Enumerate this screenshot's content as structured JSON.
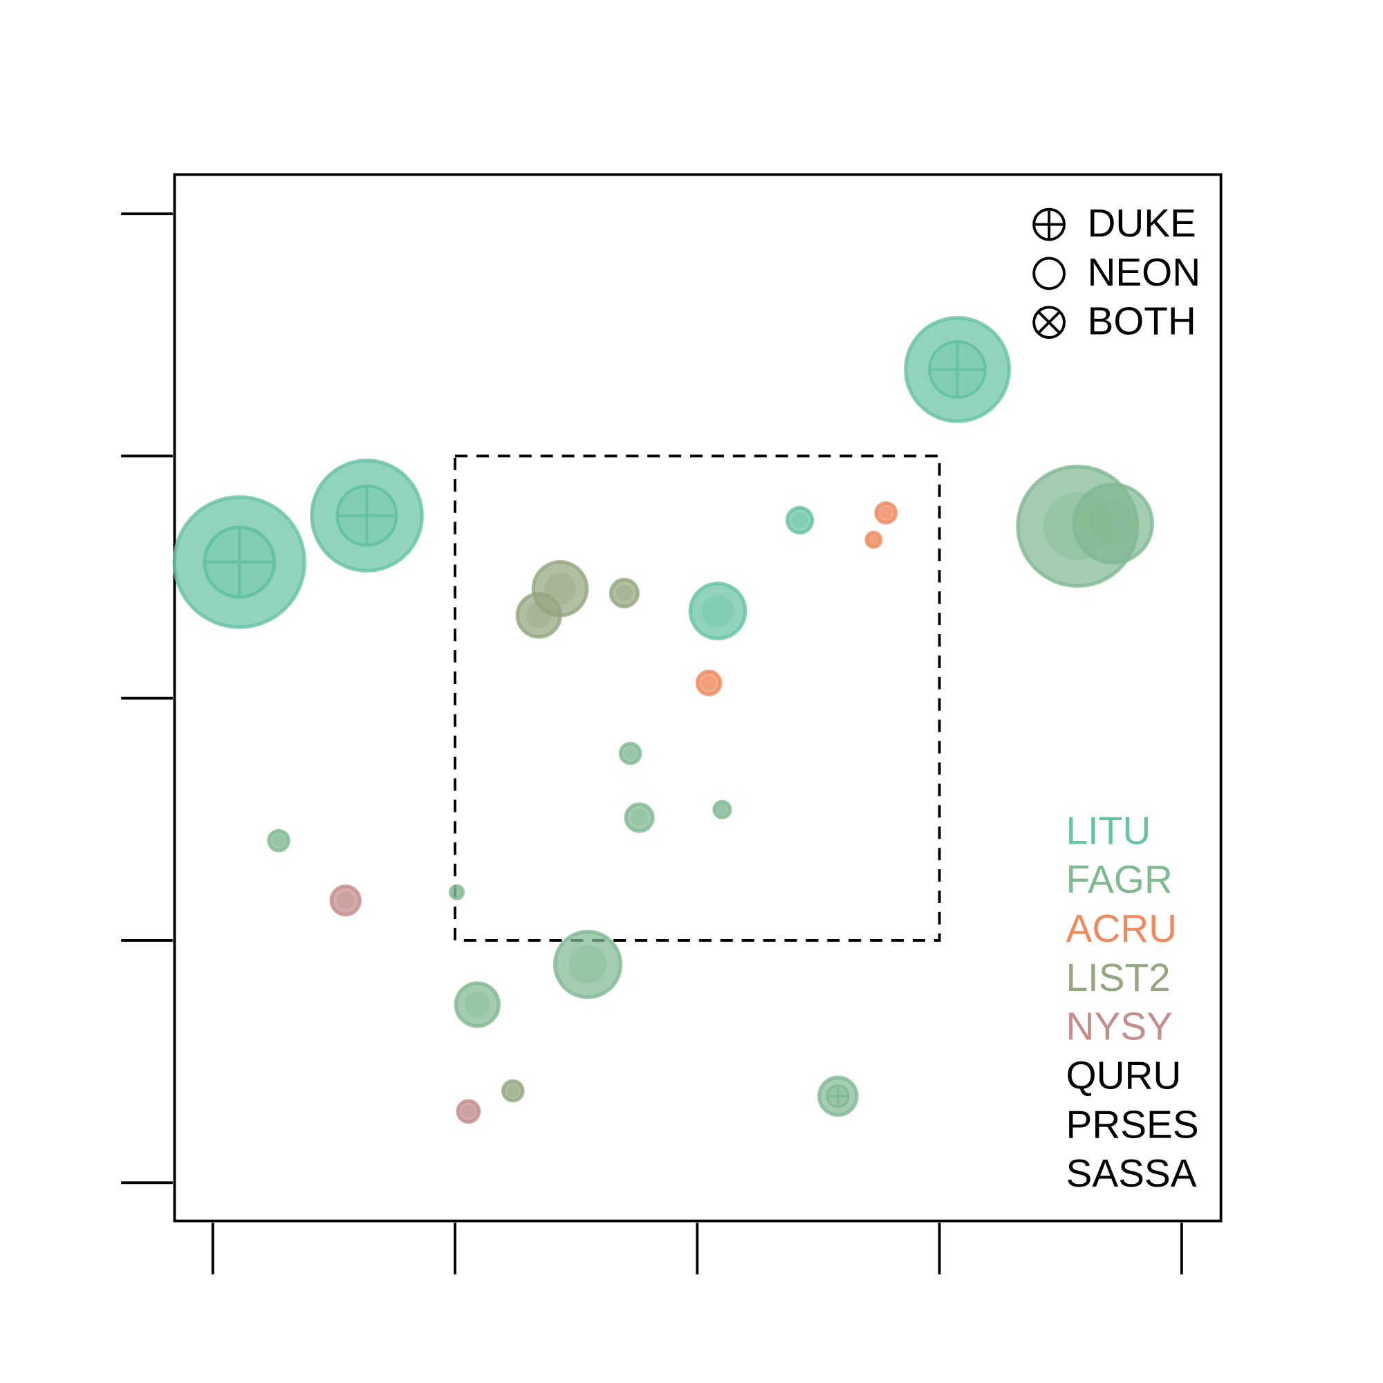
{
  "chart_data": {
    "type": "bubble",
    "xlim": [
      -1.58,
      41.62
    ],
    "ylim": [
      -1.58,
      41.62
    ],
    "xticks": [
      0,
      10,
      20,
      30,
      40
    ],
    "yticks": [
      0,
      10,
      20,
      30,
      40
    ],
    "region": {
      "xlim": [
        10,
        30
      ],
      "ylim": [
        10,
        30
      ]
    },
    "site_legend": [
      {
        "label": "DUKE",
        "symbol": "circle-plus"
      },
      {
        "label": "NEON",
        "symbol": "circle"
      },
      {
        "label": "BOTH",
        "symbol": "circle-x"
      }
    ],
    "series": [
      {
        "name": "LITU",
        "color": "#66c2a5",
        "x": [
          1.1,
          6.36,
          30.74,
          24.23,
          20.85
        ],
        "y": [
          25.62,
          27.54,
          33.57,
          27.35,
          23.6
        ],
        "sizes": [
          2.76,
          2.35,
          2.21,
          0.59,
          1.21
        ],
        "site": [
          "DUKE",
          "DUKE",
          "DUKE",
          "NEON",
          "NEON"
        ]
      },
      {
        "name": "FAGR",
        "color": "#7fb992",
        "x": [
          35.7,
          37.17,
          17.24,
          17.61,
          21.03,
          2.72,
          10.07,
          15.48,
          10.92,
          25.81
        ],
        "y": [
          27.1,
          27.21,
          17.72,
          15.07,
          15.4,
          14.12,
          11.99,
          9.01,
          7.35,
          3.57
        ],
        "sizes": [
          2.54,
          1.69,
          0.48,
          0.63,
          0.4,
          0.48,
          0.33,
          1.43,
          0.96,
          0.85
        ],
        "site": [
          "NEON",
          "NEON",
          "NEON",
          "NEON",
          "NEON",
          "NEON",
          "NEON",
          "NEON",
          "NEON",
          "DUKE"
        ]
      },
      {
        "name": "ACRU",
        "color": "#ef8a5e",
        "x": [
          27.79,
          27.28,
          20.48
        ],
        "y": [
          27.65,
          26.54,
          20.63
        ],
        "sizes": [
          0.48,
          0.37,
          0.55
        ],
        "site": [
          "NEON",
          "NEON",
          "NEON"
        ]
      },
      {
        "name": "LIST2",
        "color": "#93a67f",
        "x": [
          14.34,
          13.46,
          16.99,
          12.39
        ],
        "y": [
          24.52,
          23.42,
          24.34,
          3.79
        ],
        "sizes": [
          1.18,
          0.96,
          0.63,
          0.48
        ],
        "site": [
          "NEON",
          "NEON",
          "NEON",
          "NEON"
        ]
      },
      {
        "name": "NYSY",
        "color": "#c48c8c",
        "x": [
          5.48,
          10.55
        ],
        "y": [
          11.65,
          2.94
        ],
        "sizes": [
          0.66,
          0.51
        ],
        "site": [
          "NEON",
          "NEON"
        ]
      },
      {
        "name": "QURU",
        "color": "#000000",
        "x": [],
        "y": [],
        "sizes": [],
        "site": []
      },
      {
        "name": "PRSES",
        "color": "#000000",
        "x": [],
        "y": [],
        "sizes": [],
        "site": []
      },
      {
        "name": "SASSA",
        "color": "#000000",
        "x": [],
        "y": [],
        "sizes": [],
        "site": []
      }
    ]
  }
}
